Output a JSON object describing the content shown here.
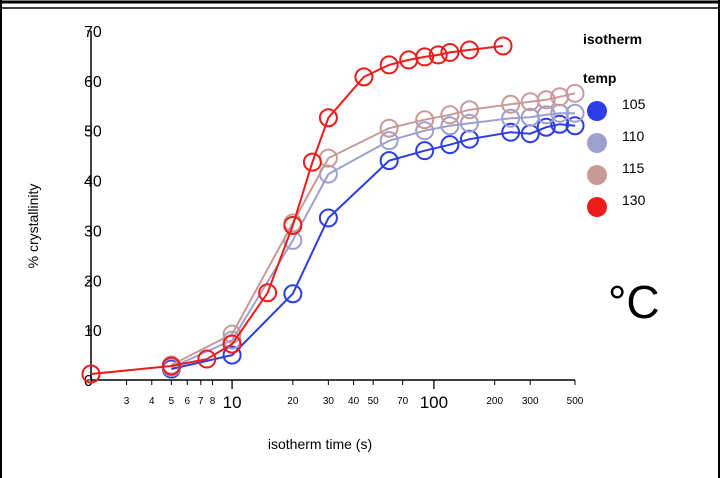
{
  "chart_data": {
    "type": "line",
    "title": "",
    "xlabel": "isotherm time (s)",
    "ylabel": "% crystallinity",
    "x_scale": "log",
    "xlim": [
      2,
      500
    ],
    "ylim": [
      0,
      70
    ],
    "x_ticks_major": [
      10,
      100
    ],
    "x_ticks_minor": [
      3,
      4,
      5,
      6,
      7,
      8,
      20,
      30,
      40,
      50,
      70,
      200,
      300,
      500
    ],
    "y_ticks": [
      0,
      10,
      20,
      30,
      40,
      50,
      60,
      70
    ],
    "y_tick_labels": [
      "0",
      "10",
      "20",
      "30",
      "40",
      "50",
      "60",
      "70"
    ],
    "grid": false,
    "legend_title_lines": [
      "isotherm",
      "temp"
    ],
    "legend_position": "right",
    "unit_label": "°C",
    "series": [
      {
        "name": "105",
        "color": "#2b3de6",
        "points": [
          [
            5,
            2.2
          ],
          [
            10,
            5
          ],
          [
            20,
            17.3
          ],
          [
            30,
            32.5
          ],
          [
            60,
            44
          ],
          [
            90,
            46
          ],
          [
            120,
            47.2
          ],
          [
            150,
            48.3
          ],
          [
            240,
            49.7
          ],
          [
            300,
            49.4
          ],
          [
            360,
            50.7
          ],
          [
            420,
            51.3
          ],
          [
            500,
            51
          ]
        ]
      },
      {
        "name": "110",
        "color": "#9d9fcf",
        "points": [
          [
            5,
            2.5
          ],
          [
            10,
            8
          ],
          [
            20,
            28
          ],
          [
            30,
            41.3
          ],
          [
            60,
            48
          ],
          [
            90,
            50
          ],
          [
            120,
            51
          ],
          [
            150,
            51.5
          ],
          [
            240,
            52.5
          ],
          [
            300,
            52.7
          ],
          [
            360,
            53.2
          ],
          [
            420,
            53.5
          ],
          [
            500,
            53.5
          ]
        ]
      },
      {
        "name": "115",
        "color": "#c79a98",
        "points": [
          [
            5,
            3
          ],
          [
            10,
            9.2
          ],
          [
            20,
            31.5
          ],
          [
            30,
            44.5
          ],
          [
            60,
            50.5
          ],
          [
            90,
            52.2
          ],
          [
            120,
            53.2
          ],
          [
            150,
            54.2
          ],
          [
            240,
            55.3
          ],
          [
            300,
            55.8
          ],
          [
            360,
            56.2
          ],
          [
            420,
            56.8
          ],
          [
            500,
            57.5
          ]
        ]
      },
      {
        "name": "130",
        "color": "#ee1b1b",
        "points": [
          [
            2,
            1.2
          ],
          [
            5,
            2.8
          ],
          [
            7.5,
            4.2
          ],
          [
            10,
            7.2
          ],
          [
            15,
            17.5
          ],
          [
            20,
            31
          ],
          [
            25,
            43.7
          ],
          [
            30,
            52.6
          ],
          [
            45,
            60.8
          ],
          [
            60,
            63.2
          ],
          [
            75,
            64.2
          ],
          [
            90,
            64.8
          ],
          [
            105,
            65.2
          ],
          [
            120,
            65.7
          ],
          [
            150,
            66.2
          ],
          [
            220,
            67
          ]
        ]
      }
    ]
  }
}
